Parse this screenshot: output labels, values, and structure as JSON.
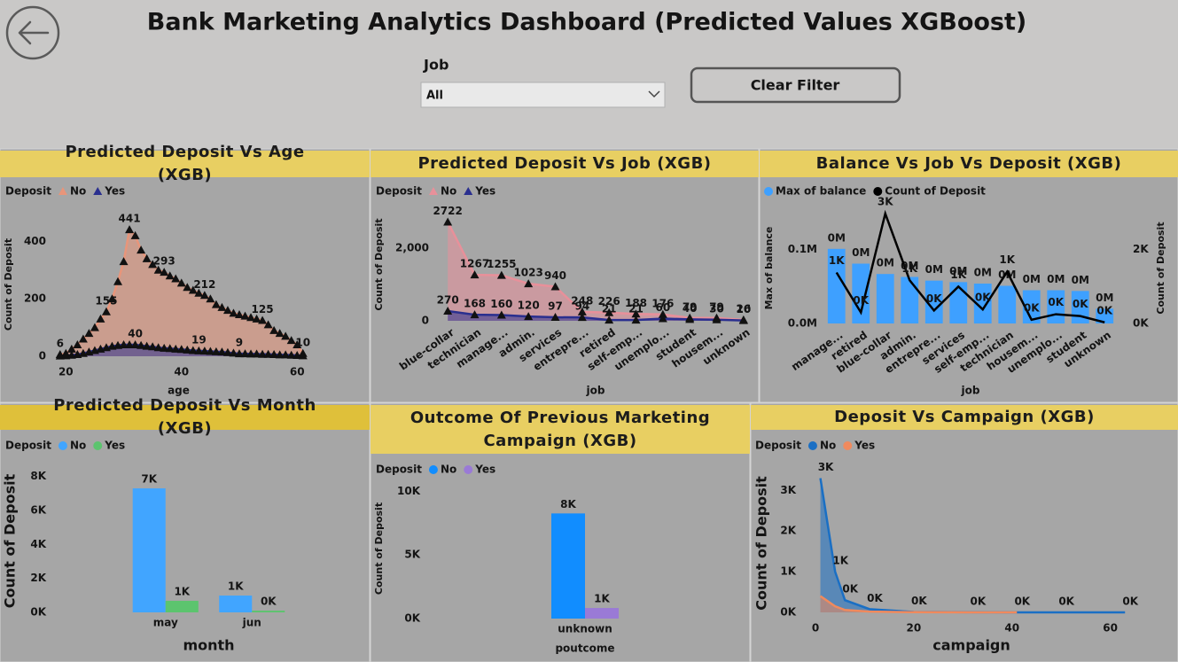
{
  "header": {
    "title": "Bank Marketing Analytics Dashboard (Predicted Values XGBoost)",
    "filter_label": "Job",
    "filter_value": "All",
    "button": "Clear Filter"
  },
  "chart_data": [
    {
      "type": "area",
      "title": "Predicted Deposit Vs Age (XGB)",
      "x_label": "age",
      "y_label": "Count of Deposit",
      "legend_title": "Deposit",
      "marker": "triangle",
      "x": [
        19,
        20,
        21,
        22,
        23,
        24,
        25,
        26,
        27,
        28,
        29,
        30,
        31,
        32,
        33,
        34,
        35,
        36,
        37,
        38,
        39,
        40,
        41,
        42,
        43,
        44,
        45,
        46,
        47,
        48,
        49,
        50,
        51,
        52,
        53,
        54,
        55,
        56,
        57,
        58,
        59,
        60,
        61
      ],
      "series": [
        {
          "name": "No",
          "color": "#e8957a",
          "values": [
            6,
            10,
            25,
            40,
            60,
            80,
            100,
            130,
            155,
            200,
            260,
            330,
            441,
            420,
            370,
            340,
            320,
            300,
            293,
            280,
            270,
            255,
            240,
            230,
            220,
            212,
            200,
            180,
            170,
            160,
            150,
            145,
            140,
            135,
            130,
            125,
            110,
            90,
            80,
            70,
            55,
            40,
            10
          ]
        },
        {
          "name": "Yes",
          "color": "#2a2f8f",
          "values": [
            1,
            2,
            4,
            6,
            10,
            15,
            20,
            25,
            30,
            35,
            38,
            40,
            40,
            40,
            38,
            35,
            33,
            30,
            28,
            27,
            25,
            24,
            22,
            20,
            19,
            18,
            17,
            16,
            15,
            13,
            11,
            9,
            9,
            8,
            8,
            7,
            7,
            6,
            5,
            5,
            4,
            3,
            2
          ]
        }
      ],
      "xlim": [
        17.5,
        61.5
      ],
      "xticks": [
        20,
        40,
        60
      ],
      "ylim": [
        0,
        500
      ],
      "yticks": [
        0,
        200,
        400
      ]
    },
    {
      "type": "area",
      "title": "Predicted Deposit Vs Job (XGB)",
      "x_label": "job",
      "y_label": "Count of Deposit",
      "legend_title": "Deposit",
      "marker": "triangle",
      "categories": [
        "blue-collar",
        "technician",
        "manage...",
        "admin.",
        "services",
        "entrepre...",
        "retired",
        "self-emp...",
        "unemplo...",
        "student",
        "housem...",
        "unknown"
      ],
      "series": [
        {
          "name": "No",
          "color": "#e8909a",
          "values": [
            2722,
            1267,
            1255,
            1023,
            940,
            248,
            226,
            188,
            176,
            79,
            79,
            26
          ]
        },
        {
          "name": "Yes",
          "color": "#2a2f8f",
          "values": [
            270,
            168,
            160,
            120,
            97,
            94,
            21,
            21,
            60,
            40,
            30,
            10
          ]
        }
      ],
      "ylim": [
        0,
        3100
      ],
      "yticks": [
        0,
        {
          "value": 2000,
          "label": "2,000"
        }
      ]
    },
    {
      "type": "bar-line",
      "title": "Balance Vs Job Vs Deposit (XGB)",
      "x_label": "job",
      "y_label": "Max of balance",
      "y2_label": "Count of Deposit",
      "categories": [
        "manage...",
        "retired",
        "blue-collar",
        "admin.",
        "entrepre...",
        "services",
        "self-emp...",
        "technician",
        "housem...",
        "unemplo...",
        "student",
        "unknown"
      ],
      "series": [
        {
          "name": "Max of balance",
          "color": "#3ea0ff",
          "values": [
            101000,
            81000,
            67000,
            63000,
            58000,
            56000,
            54000,
            51000,
            45000,
            45000,
            44000,
            20000
          ],
          "value_labels": [
            "0M",
            "0M",
            "0M",
            "0M",
            "0M",
            "0M",
            "0M",
            "0M",
            "0M",
            "0M",
            "0M",
            "0M"
          ]
        },
        {
          "name": "Count of Deposit",
          "color": "#000000",
          "axis": "y2",
          "values": [
            1380,
            300,
            2976,
            1170,
            350,
            1000,
            380,
            1400,
            100,
            250,
            200,
            30
          ],
          "value_labels": [
            "1K",
            "0K",
            "3K",
            "1K",
            "0K",
            "1K",
            "0K",
            "1K",
            "0K",
            "0K",
            "0K",
            "0K"
          ]
        }
      ],
      "ylim": [
        0,
        150000
      ],
      "yticks": [
        {
          "value": 0,
          "label": "0.0M"
        },
        {
          "value": 100000,
          "label": "0.1M"
        }
      ],
      "y2lim": [
        0,
        3000
      ],
      "y2ticks": [
        {
          "value": 0,
          "label": "0K"
        },
        {
          "value": 2000,
          "label": "2K"
        }
      ]
    },
    {
      "type": "bar",
      "title": "Predicted Deposit Vs Month (XGB)",
      "x_label": "month",
      "y_label": "Count of Deposit",
      "legend_title": "Deposit",
      "categories": [
        "may",
        "jun"
      ],
      "series": [
        {
          "name": "No",
          "color": "#41a5ff",
          "values": [
            7300,
            990
          ],
          "value_labels": [
            "7K",
            "1K"
          ]
        },
        {
          "name": "Yes",
          "color": "#5cc46e",
          "values": [
            680,
            100
          ],
          "value_labels": [
            "1K",
            "0K"
          ]
        }
      ],
      "ylim": [
        0,
        8400
      ],
      "yticks": [
        {
          "value": 0,
          "label": "0K"
        },
        {
          "value": 2000,
          "label": "2K"
        },
        {
          "value": 4000,
          "label": "4K"
        },
        {
          "value": 6000,
          "label": "6K"
        },
        {
          "value": 8000,
          "label": "8K"
        }
      ]
    },
    {
      "type": "bar",
      "title": "Outcome Of Previous Marketing Campaign (XGB)",
      "x_label": "poutcome",
      "y_label": "Count of Deposit",
      "legend_title": "Deposit",
      "categories": [
        "unknown"
      ],
      "series": [
        {
          "name": "No",
          "color": "#118dff",
          "values": [
            8260
          ],
          "value_labels": [
            "8K"
          ]
        },
        {
          "name": "Yes",
          "color": "#9a7ad6",
          "values": [
            830
          ],
          "value_labels": [
            "1K"
          ]
        }
      ],
      "ylim": [
        0,
        11000
      ],
      "yticks": [
        {
          "value": 0,
          "label": "0K"
        },
        {
          "value": 5000,
          "label": "5K"
        },
        {
          "value": 10000,
          "label": "10K"
        }
      ]
    },
    {
      "type": "area",
      "title": "Deposit Vs Campaign (XGB)",
      "x_label": "campaign",
      "y_label": "Count of Deposit",
      "legend_title": "Deposit",
      "marker": "none",
      "x": [
        1,
        4,
        6,
        11,
        20,
        32,
        41,
        50,
        63
      ],
      "series": [
        {
          "name": "No",
          "color": "#1a6fc4",
          "values": [
            3300,
            1000,
            300,
            80,
            10,
            2,
            1,
            1,
            1
          ],
          "value_labels": [
            "3K",
            "1K",
            "0K",
            "0K",
            "0K",
            "0K",
            "0K",
            "0K",
            "0K"
          ]
        },
        {
          "name": "Yes",
          "color": "#f08a5d",
          "values": [
            400,
            150,
            60,
            20,
            5,
            1,
            1,
            null,
            null
          ]
        }
      ],
      "xlim": [
        0,
        63.5
      ],
      "xticks": [
        0,
        20,
        40,
        60
      ],
      "ylim": [
        0,
        3400
      ],
      "yticks": [
        {
          "value": 0,
          "label": "0K"
        },
        {
          "value": 1000,
          "label": "1K"
        },
        {
          "value": 2000,
          "label": "2K"
        },
        {
          "value": 3000,
          "label": "3K"
        }
      ]
    }
  ]
}
